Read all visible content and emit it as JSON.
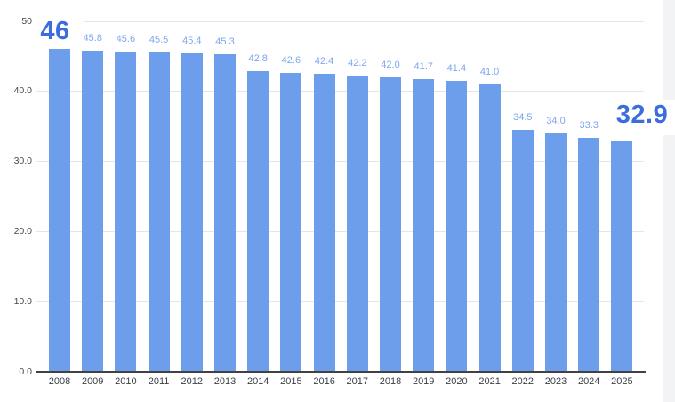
{
  "page": {
    "background": "#ffffff",
    "right_strip_color": "#f1f3f4"
  },
  "colors": {
    "bar": "#6d9eeb",
    "value_label": "#7ea7ef",
    "emphasis_label": "#3b6edc",
    "gridline": "#e6e6e6",
    "axis_line": "#424242",
    "tick_label": "#464646",
    "category_label": "#3c4043"
  },
  "chart_data": {
    "type": "bar",
    "title": "",
    "xlabel": "",
    "ylabel": "",
    "categories": [
      "2008",
      "2009",
      "2010",
      "2011",
      "2012",
      "2013",
      "2014",
      "2015",
      "2016",
      "2017",
      "2018",
      "2019",
      "2020",
      "2021",
      "2022",
      "2023",
      "2024",
      "2025"
    ],
    "values": [
      46,
      45.8,
      45.6,
      45.5,
      45.4,
      45.3,
      42.8,
      42.6,
      42.4,
      42.2,
      42.0,
      41.7,
      41.4,
      41.0,
      34.5,
      34.0,
      33.3,
      32.9
    ],
    "value_labels": [
      "46",
      "45.8",
      "45.6",
      "45.5",
      "45.4",
      "45.3",
      "42.8",
      "42.6",
      "42.4",
      "42.2",
      "42.0",
      "41.7",
      "41.4",
      "41.0",
      "34.5",
      "34.0",
      "33.3",
      "32.9"
    ],
    "emphasized_indices": [
      0,
      17
    ],
    "ylim": [
      0,
      50
    ],
    "yticks": [
      {
        "value": 50,
        "label": "50"
      },
      {
        "value": 40,
        "label": "40.0"
      },
      {
        "value": 30,
        "label": "30.0"
      },
      {
        "value": 20,
        "label": "20.0"
      },
      {
        "value": 10,
        "label": "10.0"
      },
      {
        "value": 0,
        "label": "0.0"
      }
    ],
    "grid": true,
    "legend": "none"
  }
}
